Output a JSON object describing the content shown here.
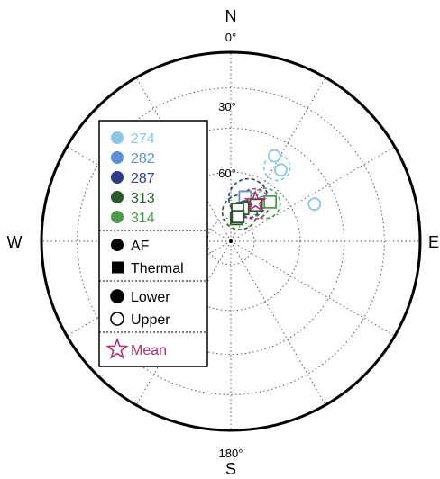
{
  "chart_data": {
    "type": "scatter",
    "projection": "polar-stereonet",
    "cardinals": {
      "north": "N",
      "south": "S",
      "east": "E",
      "west": "W"
    },
    "angle_labels": {
      "top": "0°",
      "bottom": "180°"
    },
    "ring_labels": [
      {
        "inclination": 30,
        "label": "30°"
      },
      {
        "inclination": 60,
        "label": "60°"
      }
    ],
    "rings": [
      20,
      40,
      60,
      80
    ],
    "spokes_every_deg": 30,
    "grid": true,
    "legend": {
      "placement": "left",
      "sites": [
        {
          "id": "274",
          "label": "274",
          "color": "#86c8e6"
        },
        {
          "id": "282",
          "label": "282",
          "color": "#5b8fd4"
        },
        {
          "id": "287",
          "label": "287",
          "color": "#2e3a8c"
        },
        {
          "id": "313",
          "label": "313",
          "color": "#2a5a2a"
        },
        {
          "id": "314",
          "label": "314",
          "color": "#4f9a4f"
        }
      ],
      "methods": [
        {
          "id": "af",
          "label": "AF",
          "marker": "circle"
        },
        {
          "id": "thermal",
          "label": "Thermal",
          "marker": "square"
        }
      ],
      "hemispheres": [
        {
          "id": "lower",
          "label": "Lower",
          "fill": true
        },
        {
          "id": "upper",
          "label": "Upper",
          "fill": false
        }
      ],
      "mean": {
        "label": "Mean",
        "color": "#b5316e",
        "marker": "star"
      }
    },
    "points": [
      {
        "site": "274",
        "method": "af",
        "hemisphere": "upper",
        "declaration": 0,
        "declination": 27,
        "inclination": 48,
        "a95": 5.5
      },
      {
        "site": "274",
        "method": "af",
        "hemisphere": "upper",
        "declination": 35,
        "inclination": 52,
        "a95": 0
      },
      {
        "site": "274",
        "method": "af",
        "hemisphere": "upper",
        "declination": 66,
        "inclination": 50,
        "a95": 4
      },
      {
        "site": "282",
        "method": "thermal",
        "hemisphere": "upper",
        "declination": 18,
        "inclination": 70,
        "a95": 0
      },
      {
        "site": "287",
        "method": "af",
        "hemisphere": "upper",
        "declination": 22,
        "inclination": 74,
        "a95": 0
      },
      {
        "site": "282",
        "method": "af",
        "hemisphere": "upper",
        "declination": 40,
        "inclination": 68,
        "a95": 0
      },
      {
        "site": "313",
        "method": "thermal",
        "hemisphere": "upper",
        "declination": 35,
        "inclination": 71,
        "a95": 0
      },
      {
        "site": "313",
        "method": "thermal",
        "hemisphere": "upper",
        "declination": 20,
        "inclination": 75,
        "a95": 0
      },
      {
        "site": "313",
        "method": "thermal",
        "hemisphere": "upper",
        "declination": 12,
        "inclination": 76,
        "a95": 0
      },
      {
        "site": "313",
        "method": "thermal",
        "hemisphere": "upper",
        "declination": 14,
        "inclination": 80,
        "a95": 0
      },
      {
        "site": "314",
        "method": "thermal",
        "hemisphere": "upper",
        "declination": 45,
        "inclination": 66,
        "a95": 0
      },
      {
        "site": "313",
        "method": "thermal",
        "hemisphere": "upper",
        "declination": 16,
        "inclination": 79,
        "a95": 0
      }
    ],
    "confidence_circles": [
      {
        "site": "274",
        "declination": 32,
        "inclination": 52,
        "radius_deg": 6
      },
      {
        "site": "287",
        "declination": 22,
        "inclination": 70,
        "radius_deg": 9
      },
      {
        "site": "313",
        "declination": 17,
        "inclination": 77,
        "radius_deg": 8
      },
      {
        "site": "314",
        "declination": 42,
        "inclination": 68,
        "radius_deg": 7
      },
      {
        "site": "mean",
        "declination": 32,
        "inclination": 71,
        "radius_deg": 7
      }
    ],
    "means": [
      {
        "declination": 32,
        "inclination": 70
      }
    ]
  }
}
